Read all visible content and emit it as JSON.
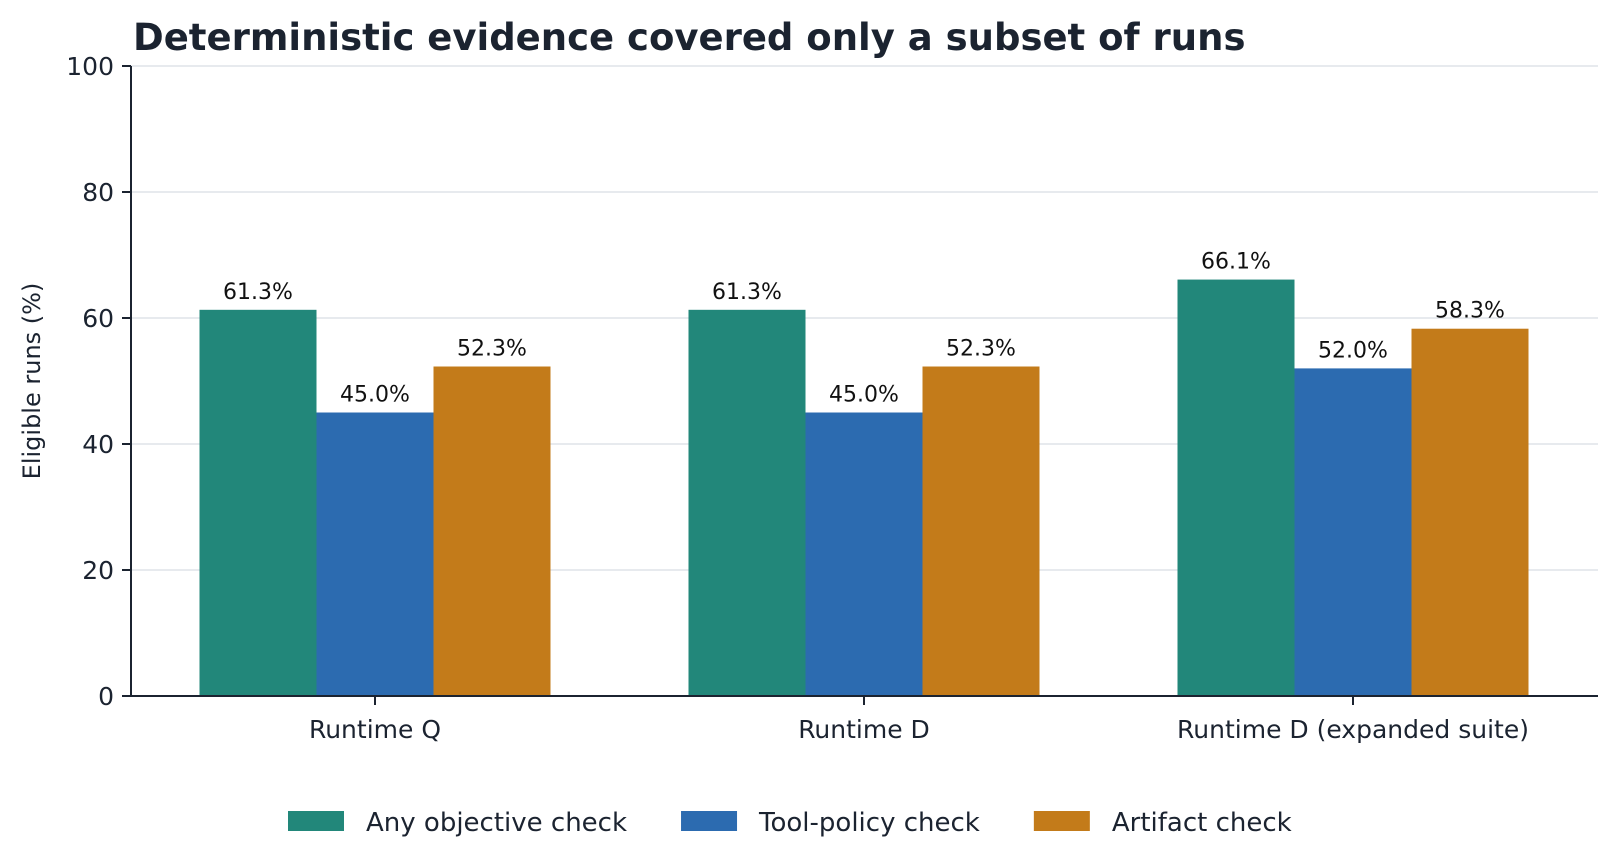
{
  "chart_data": {
    "type": "bar",
    "title": "Deterministic evidence covered only a subset of runs",
    "xlabel": "",
    "ylabel": "Eligible runs (%)",
    "ylim": [
      0,
      100
    ],
    "yticks": [
      0,
      20,
      40,
      60,
      80,
      100
    ],
    "grid": "horizontal",
    "legend_position": "bottom",
    "categories": [
      "Runtime Q",
      "Runtime D",
      "Runtime D (expanded suite)"
    ],
    "series": [
      {
        "name": "Any objective check",
        "color": "#22877a",
        "values": [
          61.3,
          61.3,
          66.1
        ],
        "labels": [
          "61.3%",
          "61.3%",
          "66.1%"
        ]
      },
      {
        "name": "Tool-policy check",
        "color": "#2c6bb0",
        "values": [
          45.0,
          45.0,
          52.0
        ],
        "labels": [
          "45.0%",
          "45.0%",
          "52.0%"
        ]
      },
      {
        "name": "Artifact check",
        "color": "#c37b1a",
        "values": [
          52.3,
          52.3,
          58.3
        ],
        "labels": [
          "52.3%",
          "52.3%",
          "58.3%"
        ]
      }
    ]
  }
}
